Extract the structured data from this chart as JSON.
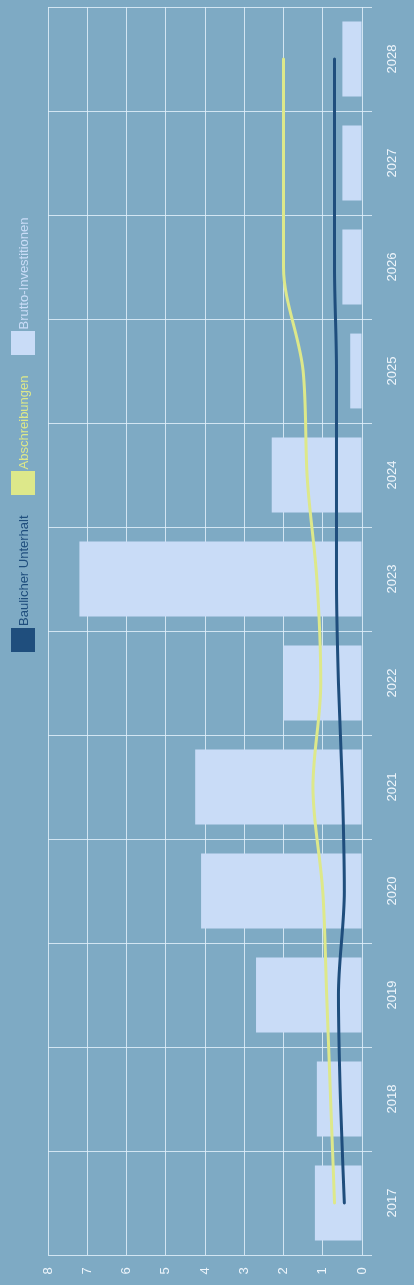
{
  "chart_data": {
    "type": "bar",
    "orientation": "horizontal",
    "categories": [
      "2028",
      "2027",
      "2026",
      "2025",
      "2024",
      "2023",
      "2022",
      "2021",
      "2020",
      "2019",
      "2018",
      "2017"
    ],
    "series": [
      {
        "name": "Baulicher Unterhalt",
        "type": "line",
        "color": "#1f4e7d",
        "values": [
          0.7,
          0.7,
          0.7,
          0.65,
          0.65,
          0.65,
          0.6,
          0.5,
          0.45,
          0.6,
          0.55,
          0.45
        ]
      },
      {
        "name": "Abschreibungen",
        "type": "line",
        "color": "#dde88a",
        "values": [
          2.0,
          2.0,
          2.0,
          1.5,
          1.4,
          1.15,
          1.05,
          1.25,
          1.0,
          0.9,
          0.8,
          0.7
        ]
      },
      {
        "name": "Brutto-Investitionen",
        "color": "#c9dcf7",
        "values": [
          0.5,
          0.5,
          0.5,
          0.3,
          2.3,
          7.2,
          2.0,
          4.25,
          4.1,
          2.7,
          1.15,
          1.2
        ]
      }
    ],
    "xlim": [
      8,
      0
    ],
    "xticks": [
      8,
      7,
      6,
      5,
      4,
      3,
      2,
      1,
      0
    ],
    "grid": true,
    "legend": "left",
    "marker": "none",
    "line_style": "solid"
  }
}
